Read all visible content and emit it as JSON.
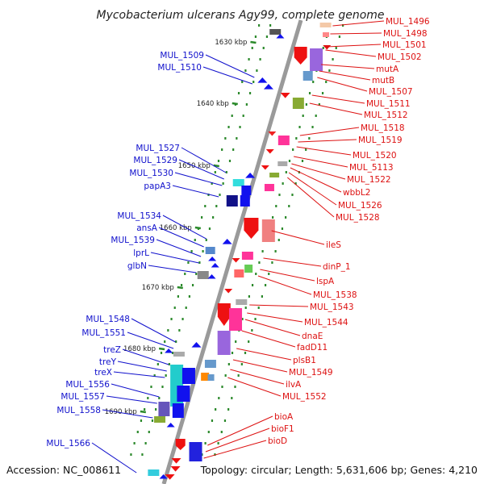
{
  "title": "Mycobacterium ulcerans Agy99, complete genome",
  "footer": {
    "accession": "Accession: NC_008611",
    "topology": "Topology: circular; Length: 5,631,606 bp; Genes: 4,210"
  },
  "colors": {
    "left_label": "#1010cc",
    "right_label": "#dd1111",
    "backbone": "#9a9a9a",
    "tick": "#2a8a2a"
  },
  "scale_ticks": [
    "1630 kbp",
    "1640 kbp",
    "1650 kbp",
    "1660 kbp",
    "1670 kbp",
    "1680 kbp",
    "1690 kbp"
  ],
  "left_genes": [
    "MUL_1509",
    "MUL_1510",
    "MUL_1527",
    "MUL_1529",
    "MUL_1530",
    "papA3",
    "MUL_1534",
    "ansA",
    "MUL_1539",
    "lprL",
    "glbN",
    "MUL_1548",
    "MUL_1551",
    "treZ",
    "treY",
    "treX",
    "MUL_1556",
    "MUL_1557",
    "MUL_1558",
    "MUL_1566"
  ],
  "right_genes": [
    "MUL_1496",
    "MUL_1498",
    "MUL_1501",
    "MUL_1502",
    "mutA",
    "mutB",
    "MUL_1507",
    "MUL_1511",
    "MUL_1512",
    "MUL_1518",
    "MUL_1519",
    "MUL_1520",
    "MUL_5113",
    "MUL_1522",
    "wbbL2",
    "MUL_1526",
    "MUL_1528",
    "ileS",
    "dinP_1",
    "lspA",
    "MUL_1538",
    "MUL_1543",
    "MUL_1544",
    "dnaE",
    "fadD11",
    "plsB1",
    "MUL_1549",
    "ilvA",
    "MUL_1552",
    "bioA",
    "bioF1",
    "bioD"
  ]
}
